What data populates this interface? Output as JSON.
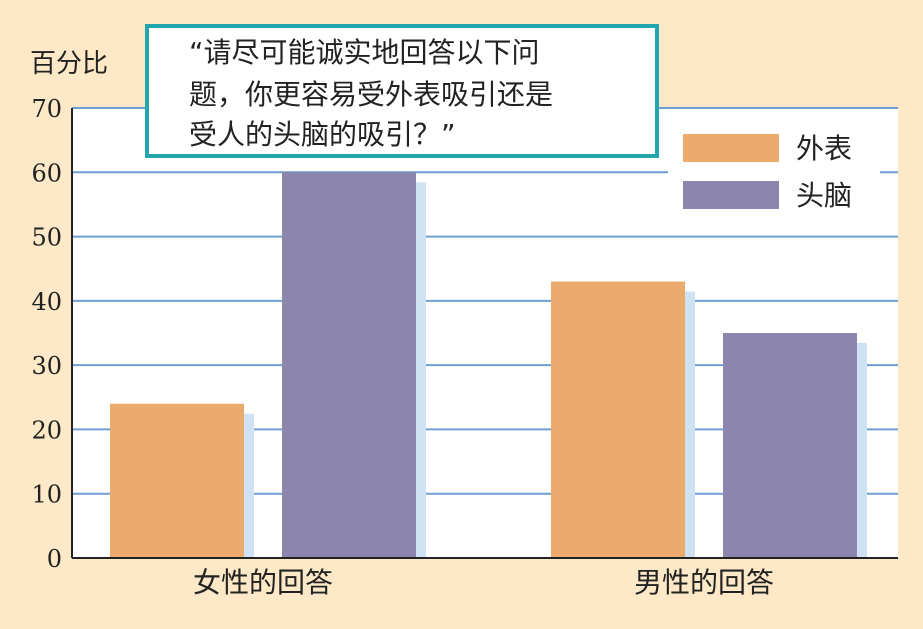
{
  "chart_data": {
    "type": "bar",
    "title": "“请尽可能诚实地回答以下问题，你更容易受外表吸引还是受人的头脑的吸引？”",
    "title_lines": [
      "“请尽可能诚实地回答以下问",
      "题，你更容易受外表吸引还是",
      "受人的头脑的吸引？”"
    ],
    "ylabel": "百分比",
    "xlabel": "",
    "ylim": [
      0,
      70
    ],
    "yticks": [
      0,
      10,
      20,
      30,
      40,
      50,
      60,
      70
    ],
    "grid": true,
    "legend_position": "top-right",
    "categories": [
      "女性的回答",
      "男性的回答"
    ],
    "series": [
      {
        "name": "外表",
        "color": "#ecab6c",
        "values": [
          24,
          43
        ]
      },
      {
        "name": "头脑",
        "color": "#8c86ac",
        "values": [
          60,
          35
        ]
      }
    ]
  },
  "colors": {
    "background": "#fde9c8",
    "plot_background": "#ffffff",
    "grid": "#6f9fd2",
    "shadow": "#cfe2f4",
    "title_border": "#23a6ae"
  }
}
